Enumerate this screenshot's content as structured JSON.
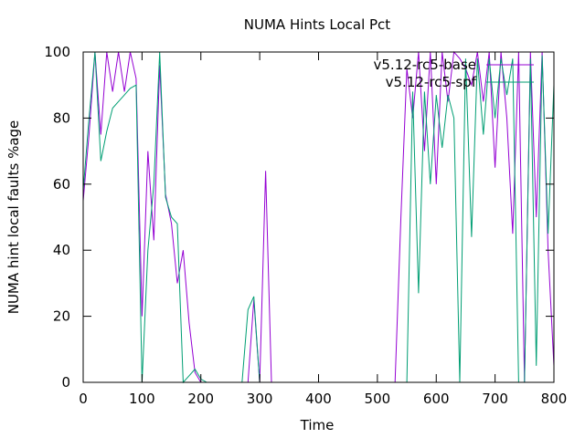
{
  "chart_data": {
    "type": "line",
    "title": "NUMA Hints Local Pct",
    "xlabel": "Time",
    "ylabel": "NUMA hint local faults %age",
    "xlim": [
      0,
      800
    ],
    "ylim": [
      0,
      100
    ],
    "xticks": [
      0,
      100,
      200,
      300,
      400,
      500,
      600,
      700,
      800
    ],
    "yticks": [
      0,
      20,
      40,
      60,
      80,
      100
    ],
    "grid": false,
    "legend_position": "top-right",
    "series": [
      {
        "name": "v5.12-rc5-base",
        "color": "#9400d3",
        "points": [
          [
            0,
            55
          ],
          [
            10,
            75
          ],
          [
            20,
            100
          ],
          [
            30,
            75
          ],
          [
            40,
            100
          ],
          [
            50,
            88
          ],
          [
            60,
            100
          ],
          [
            70,
            88
          ],
          [
            80,
            100
          ],
          [
            90,
            92
          ],
          [
            100,
            20
          ],
          [
            110,
            70
          ],
          [
            120,
            43
          ],
          [
            130,
            96
          ],
          [
            140,
            57
          ],
          [
            150,
            48
          ],
          [
            160,
            30
          ],
          [
            170,
            40
          ],
          [
            180,
            18
          ],
          [
            190,
            3
          ],
          [
            200,
            0
          ],
          [
            210,
            0
          ],
          [
            220,
            0
          ],
          [
            230,
            0
          ],
          [
            240,
            0
          ],
          [
            250,
            0
          ],
          [
            260,
            0
          ],
          [
            270,
            0
          ],
          [
            280,
            0
          ],
          [
            290,
            25
          ],
          [
            300,
            0
          ],
          [
            310,
            64
          ],
          [
            320,
            0
          ],
          [
            330,
            0
          ],
          [
            340,
            0
          ],
          [
            350,
            0
          ],
          [
            360,
            0
          ],
          [
            370,
            0
          ],
          [
            380,
            0
          ],
          [
            390,
            0
          ],
          [
            400,
            0
          ],
          [
            410,
            0
          ],
          [
            420,
            0
          ],
          [
            430,
            0
          ],
          [
            440,
            0
          ],
          [
            450,
            0
          ],
          [
            460,
            0
          ],
          [
            470,
            0
          ],
          [
            480,
            0
          ],
          [
            490,
            0
          ],
          [
            500,
            0
          ],
          [
            510,
            0
          ],
          [
            520,
            0
          ],
          [
            530,
            0
          ],
          [
            540,
            50
          ],
          [
            550,
            95
          ],
          [
            560,
            80
          ],
          [
            570,
            100
          ],
          [
            580,
            70
          ],
          [
            590,
            100
          ],
          [
            600,
            60
          ],
          [
            610,
            100
          ],
          [
            620,
            85
          ],
          [
            630,
            100
          ],
          [
            640,
            98
          ],
          [
            650,
            95
          ],
          [
            660,
            90
          ],
          [
            670,
            100
          ],
          [
            680,
            85
          ],
          [
            690,
            100
          ],
          [
            700,
            65
          ],
          [
            710,
            100
          ],
          [
            720,
            80
          ],
          [
            730,
            45
          ],
          [
            740,
            100
          ],
          [
            750,
            0
          ],
          [
            760,
            100
          ],
          [
            770,
            50
          ],
          [
            780,
            100
          ],
          [
            790,
            40
          ],
          [
            800,
            5
          ]
        ]
      },
      {
        "name": "v5.12-rc5-spf",
        "color": "#009e73",
        "points": [
          [
            0,
            58
          ],
          [
            10,
            80
          ],
          [
            20,
            100
          ],
          [
            30,
            67
          ],
          [
            40,
            76
          ],
          [
            50,
            83
          ],
          [
            60,
            85
          ],
          [
            70,
            87
          ],
          [
            80,
            89
          ],
          [
            90,
            90
          ],
          [
            100,
            0
          ],
          [
            110,
            40
          ],
          [
            120,
            60
          ],
          [
            130,
            100
          ],
          [
            140,
            56
          ],
          [
            150,
            50
          ],
          [
            160,
            48
          ],
          [
            170,
            0
          ],
          [
            180,
            2
          ],
          [
            190,
            4
          ],
          [
            200,
            1
          ],
          [
            210,
            0
          ],
          [
            220,
            0
          ],
          [
            230,
            0
          ],
          [
            240,
            0
          ],
          [
            250,
            0
          ],
          [
            260,
            0
          ],
          [
            270,
            0
          ],
          [
            280,
            22
          ],
          [
            290,
            26
          ],
          [
            300,
            0
          ],
          [
            310,
            0
          ],
          [
            320,
            0
          ],
          [
            330,
            0
          ],
          [
            340,
            0
          ],
          [
            350,
            0
          ],
          [
            360,
            0
          ],
          [
            370,
            0
          ],
          [
            380,
            0
          ],
          [
            390,
            0
          ],
          [
            400,
            0
          ],
          [
            410,
            0
          ],
          [
            420,
            0
          ],
          [
            430,
            0
          ],
          [
            440,
            0
          ],
          [
            450,
            0
          ],
          [
            460,
            0
          ],
          [
            470,
            0
          ],
          [
            480,
            0
          ],
          [
            490,
            0
          ],
          [
            500,
            0
          ],
          [
            510,
            0
          ],
          [
            520,
            0
          ],
          [
            530,
            0
          ],
          [
            540,
            0
          ],
          [
            550,
            0
          ],
          [
            560,
            88
          ],
          [
            570,
            27
          ],
          [
            580,
            88
          ],
          [
            590,
            60
          ],
          [
            600,
            87
          ],
          [
            610,
            71
          ],
          [
            620,
            87
          ],
          [
            630,
            80
          ],
          [
            640,
            0
          ],
          [
            650,
            98
          ],
          [
            660,
            44
          ],
          [
            670,
            98
          ],
          [
            680,
            75
          ],
          [
            690,
            98
          ],
          [
            700,
            80
          ],
          [
            710,
            98
          ],
          [
            720,
            87
          ],
          [
            730,
            98
          ],
          [
            740,
            0
          ],
          [
            750,
            0
          ],
          [
            760,
            98
          ],
          [
            770,
            5
          ],
          [
            780,
            99
          ],
          [
            790,
            45
          ],
          [
            800,
            90
          ]
        ]
      }
    ]
  }
}
